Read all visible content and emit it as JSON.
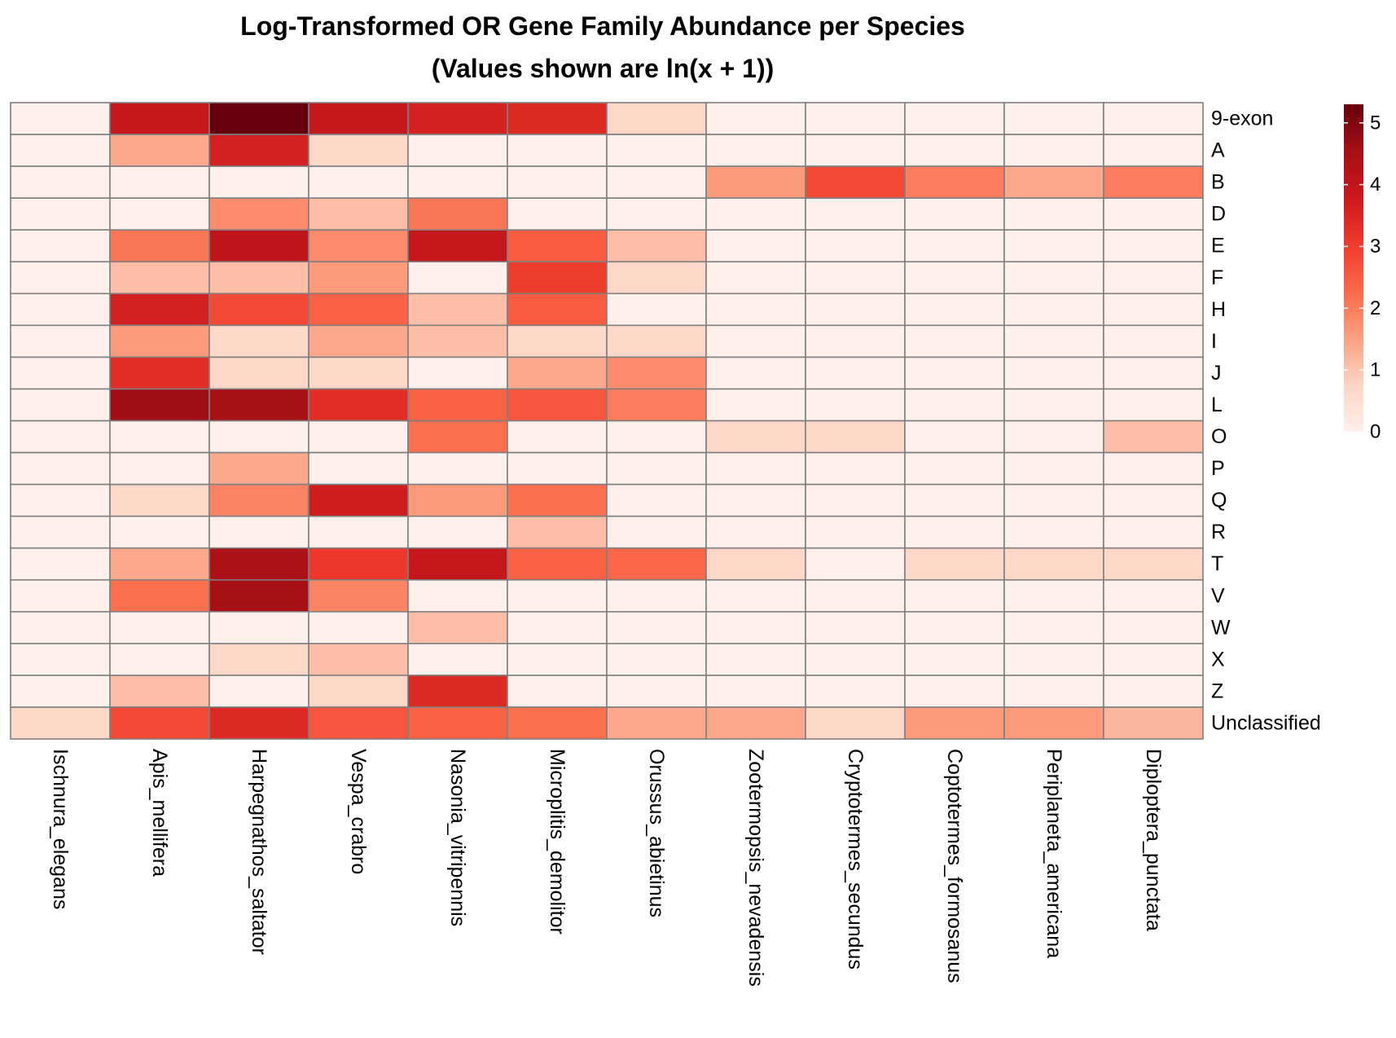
{
  "chart_data": {
    "type": "heatmap",
    "title": "Log-Transformed OR Gene Family Abundance per Species",
    "subtitle": "(Values shown are ln(x + 1))",
    "columns": [
      "Ischnura_elegans",
      "Apis_mellifera",
      "Harpegnathos_saltator",
      "Vespa_crabro",
      "Nasonia_vitripennis",
      "Microplitis_demolitor",
      "Orussus_abietinus",
      "Zootermopsis_nevadensis",
      "Cryptotermes_secundus",
      "Coptotermes_formosanus",
      "Periplaneta_americana",
      "Diploptera_punctata"
    ],
    "rows": [
      "9-exon",
      "A",
      "B",
      "D",
      "E",
      "F",
      "H",
      "I",
      "J",
      "L",
      "O",
      "P",
      "Q",
      "R",
      "T",
      "V",
      "W",
      "X",
      "Z",
      "Unclassified"
    ],
    "values": [
      [
        0,
        3.9,
        5.3,
        3.9,
        3.6,
        3.4,
        0.7,
        0,
        0,
        0,
        0,
        0
      ],
      [
        0,
        1.4,
        3.6,
        0.7,
        0,
        0,
        0,
        0,
        0,
        0,
        0,
        0
      ],
      [
        0,
        0,
        0,
        0,
        0,
        0,
        0,
        1.6,
        2.8,
        2.0,
        1.4,
        2.0
      ],
      [
        0,
        0,
        1.8,
        1.1,
        2.1,
        0,
        0,
        0,
        0,
        0,
        0,
        0
      ],
      [
        0,
        2.1,
        4.0,
        1.8,
        3.9,
        2.5,
        1.1,
        0,
        0,
        0,
        0,
        0
      ],
      [
        0,
        1.1,
        1.1,
        1.6,
        0,
        3.0,
        0.7,
        0,
        0,
        0,
        0,
        0
      ],
      [
        0,
        3.6,
        2.8,
        2.4,
        1.1,
        2.5,
        0,
        0,
        0,
        0,
        0,
        0
      ],
      [
        0,
        1.6,
        0.7,
        1.4,
        1.1,
        0.7,
        0.7,
        0,
        0,
        0,
        0,
        0
      ],
      [
        0,
        3.3,
        0.7,
        0.7,
        0,
        1.4,
        1.8,
        0,
        0,
        0,
        0,
        0
      ],
      [
        0,
        4.6,
        4.5,
        3.3,
        2.4,
        2.6,
        2.0,
        0,
        0,
        0,
        0,
        0
      ],
      [
        0,
        0,
        0,
        0,
        2.2,
        0,
        0,
        0.7,
        0.7,
        0,
        0,
        1.1
      ],
      [
        0,
        0,
        1.4,
        0,
        0,
        0,
        0,
        0,
        0,
        0,
        0,
        0
      ],
      [
        0,
        0.7,
        1.9,
        3.7,
        1.6,
        2.2,
        0,
        0,
        0,
        0,
        0,
        0
      ],
      [
        0,
        0,
        0,
        0,
        0,
        1.1,
        0,
        0,
        0,
        0,
        0,
        0
      ],
      [
        0,
        1.4,
        4.4,
        3.1,
        3.9,
        2.4,
        2.3,
        0.7,
        0,
        0.7,
        0.7,
        0.7
      ],
      [
        0,
        2.2,
        4.5,
        1.9,
        0,
        0,
        0,
        0,
        0,
        0,
        0,
        0
      ],
      [
        0,
        0,
        0,
        0,
        1.1,
        0,
        0,
        0,
        0,
        0,
        0,
        0
      ],
      [
        0,
        0,
        0.7,
        1.1,
        0,
        0,
        0,
        0,
        0,
        0,
        0,
        0
      ],
      [
        0,
        1.1,
        0,
        0.7,
        3.4,
        0,
        0,
        0,
        0,
        0,
        0,
        0
      ],
      [
        0.7,
        2.8,
        3.4,
        2.6,
        2.4,
        2.2,
        1.4,
        1.4,
        0.7,
        1.6,
        1.6,
        1.2
      ]
    ],
    "color_scale": {
      "min": 0,
      "max": 5.3,
      "stops": [
        "#fff0ec",
        "#fdd5c4",
        "#fca082",
        "#fb6a4a",
        "#ef3b2c",
        "#cb181d",
        "#a50f15",
        "#67000d"
      ],
      "ticks": [
        0,
        1,
        2,
        3,
        4,
        5
      ],
      "legend_position": "right"
    },
    "grid_color": "#7f7f7f"
  }
}
